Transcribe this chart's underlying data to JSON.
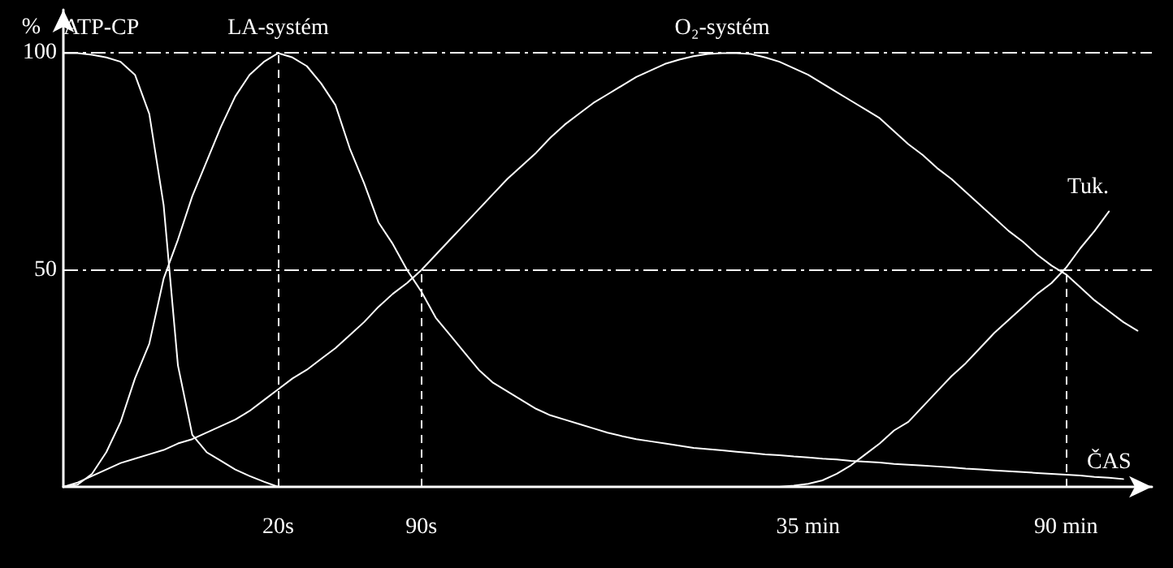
{
  "chart_data": {
    "type": "line",
    "xlabel": "ČAS",
    "ylabel": "%",
    "categories": [
      null,
      null,
      null,
      null,
      null,
      null,
      null,
      null,
      null,
      null,
      null,
      null,
      null,
      null,
      null,
      "20s",
      null,
      null,
      null,
      null,
      null,
      null,
      null,
      null,
      null,
      "90s",
      null,
      null,
      null,
      null,
      null,
      null,
      null,
      null,
      null,
      null,
      null,
      null,
      null,
      null,
      null,
      null,
      null,
      null,
      null,
      null,
      null,
      null,
      null,
      null,
      null,
      null,
      "35 min",
      null,
      null,
      null,
      null,
      null,
      null,
      null,
      null,
      null,
      null,
      null,
      null,
      null,
      null,
      null,
      null,
      null,
      "90 min",
      null,
      null,
      null,
      null,
      null,
      null
    ],
    "series": [
      {
        "name": "ATP-CP",
        "color": "#ffffff",
        "values": [
          100,
          100,
          99.6,
          99,
          98,
          95,
          86,
          65,
          28,
          12,
          8,
          6,
          4,
          2.5,
          1.2,
          0,
          null,
          null,
          null,
          null,
          null,
          null,
          null,
          null,
          null,
          null,
          null,
          null,
          null,
          null,
          null,
          null,
          null,
          null,
          null,
          null,
          null,
          null,
          null,
          null,
          null,
          null,
          null,
          null,
          null,
          null,
          null,
          null,
          null,
          null,
          null,
          null,
          null,
          null,
          null,
          null,
          null,
          null,
          null,
          null,
          null,
          null,
          null,
          null,
          null,
          null,
          null,
          null,
          null,
          null,
          null,
          null,
          null,
          null,
          null,
          null,
          null
        ]
      },
      {
        "name": "LA-systém",
        "color": "#ffffff",
        "values": [
          0,
          0.5,
          3,
          8,
          15,
          25,
          33,
          48,
          57,
          67,
          75,
          83,
          90,
          95,
          98,
          100,
          99,
          97,
          93,
          88,
          78,
          70,
          61,
          56,
          50,
          45,
          39,
          35,
          31,
          27,
          24,
          22,
          20,
          18,
          16.5,
          15.5,
          14.5,
          13.5,
          12.5,
          11.7,
          11,
          10.5,
          10,
          9.5,
          9,
          8.7,
          8.4,
          8.1,
          7.8,
          7.5,
          7.3,
          7,
          6.8,
          6.5,
          6.3,
          6,
          5.8,
          5.6,
          5.3,
          5.1,
          4.9,
          4.7,
          4.5,
          4.2,
          4,
          3.8,
          3.6,
          3.4,
          3.2,
          3,
          2.8,
          2.6,
          2.3,
          2.1,
          1.8,
          null,
          null
        ]
      },
      {
        "name": "O₂-systém",
        "color": "#ffffff",
        "values": [
          0,
          1,
          2.5,
          4,
          5.5,
          6.5,
          7.5,
          8.5,
          10,
          11,
          12.5,
          14,
          15.5,
          17.5,
          20,
          22.5,
          25,
          27,
          29.5,
          32,
          35,
          38,
          41.5,
          44.5,
          47,
          50,
          53.5,
          57,
          60.5,
          64,
          67.5,
          71,
          74,
          77,
          80.5,
          83.5,
          86,
          88.5,
          90.5,
          92.5,
          94.5,
          96,
          97.5,
          98.5,
          99.3,
          99.8,
          100,
          100,
          99.8,
          99,
          98,
          96.5,
          95,
          93,
          91,
          89,
          87,
          85,
          82,
          79,
          76.5,
          73.5,
          71,
          68,
          65,
          62,
          59,
          56.5,
          53.5,
          51,
          49,
          46,
          43,
          40.5,
          38,
          36,
          null
        ]
      },
      {
        "name": "Tuk.",
        "color": "#ffffff",
        "values": [
          null,
          null,
          null,
          null,
          null,
          null,
          null,
          null,
          null,
          null,
          null,
          null,
          null,
          null,
          null,
          null,
          null,
          null,
          null,
          null,
          null,
          null,
          null,
          null,
          null,
          null,
          null,
          null,
          null,
          null,
          null,
          null,
          null,
          null,
          null,
          null,
          null,
          null,
          null,
          null,
          null,
          null,
          null,
          null,
          null,
          null,
          null,
          null,
          null,
          null,
          0,
          0.3,
          0.7,
          1.5,
          3,
          5,
          7.5,
          10,
          13,
          15,
          18.5,
          22,
          25.5,
          28.5,
          32,
          35.5,
          38.5,
          41.5,
          44.5,
          47,
          50.5,
          55,
          59,
          63.5,
          null,
          null,
          null
        ]
      }
    ],
    "ylim": [
      0,
      110
    ],
    "yticks": [
      50,
      100
    ],
    "marker": "none",
    "line_style": "solid",
    "ref_lines": [
      {
        "axis": "y",
        "value": 100,
        "color": "#ffffff",
        "line_style": "dashdot"
      },
      {
        "axis": "y",
        "value": 50,
        "color": "#ffffff",
        "line_style": "dashdot"
      },
      {
        "axis": "x",
        "value": "20s",
        "color": "#ffffff",
        "line_style": "dashed"
      },
      {
        "axis": "x",
        "value": "90s",
        "color": "#ffffff",
        "line_style": "dashed"
      },
      {
        "axis": "x",
        "value": "90 min",
        "color": "#ffffff",
        "line_style": "dashed"
      }
    ]
  }
}
